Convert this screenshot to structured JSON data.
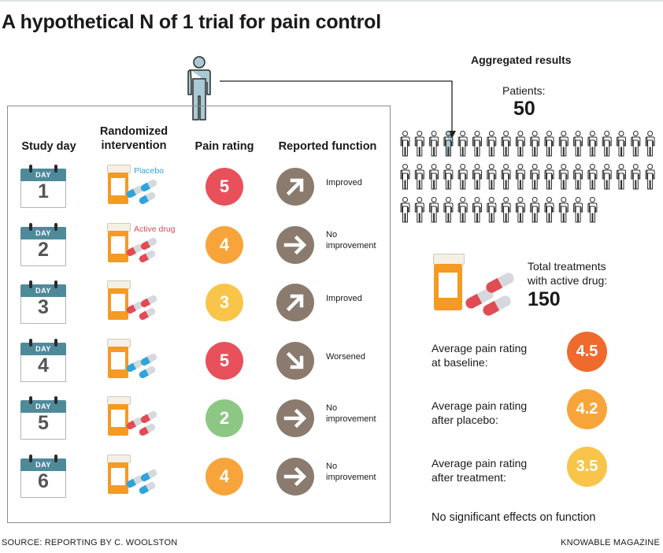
{
  "title": "A hypothetical N of 1 trial for pain control",
  "table": {
    "headers": {
      "study_day": "Study day",
      "intervention": "Randomized intervention",
      "pain_rating": "Pain rating",
      "function": "Reported function"
    },
    "day_label": "DAY",
    "rows": [
      {
        "day": "1",
        "intervention": "Placebo",
        "intervention_label": "Placebo",
        "rating": "5",
        "rating_color": "#e8505b",
        "function": "Improved",
        "arrow": "up-right-arrow-icon"
      },
      {
        "day": "2",
        "intervention": "Active drug",
        "intervention_label": "Active drug",
        "rating": "4",
        "rating_color": "#f7a53b",
        "function": "No improvement",
        "arrow": "right-arrow-icon"
      },
      {
        "day": "3",
        "intervention": "Active drug",
        "intervention_label": "",
        "rating": "3",
        "rating_color": "#f8c54a",
        "function": "Improved",
        "arrow": "up-right-arrow-icon"
      },
      {
        "day": "4",
        "intervention": "Placebo",
        "intervention_label": "",
        "rating": "5",
        "rating_color": "#e8505b",
        "function": "Worsened",
        "arrow": "down-right-arrow-icon"
      },
      {
        "day": "5",
        "intervention": "Active drug",
        "intervention_label": "",
        "rating": "2",
        "rating_color": "#8cc784",
        "function": "No improvement",
        "arrow": "right-arrow-icon"
      },
      {
        "day": "6",
        "intervention": "Placebo",
        "intervention_label": "",
        "rating": "4",
        "rating_color": "#f7a53b",
        "function": "No improvement",
        "arrow": "right-arrow-icon"
      }
    ]
  },
  "aggregated": {
    "title": "Aggregated results",
    "patients_label": "Patients:",
    "patients_value": "50",
    "total_label_1": "Total treatments",
    "total_label_2": "with active drug:",
    "total_value": "150",
    "ratings": [
      {
        "label_1": "Average pain rating",
        "label_2": "at baseline:",
        "value": "4.5",
        "color": "#ef6a2d"
      },
      {
        "label_1": "Average pain rating",
        "label_2": "after placebo:",
        "value": "4.2",
        "color": "#f7a53b"
      },
      {
        "label_1": "Average pain rating",
        "label_2": "after treatment:",
        "value": "3.5",
        "color": "#f8c54a"
      }
    ],
    "function_note": "No significant effects on function"
  },
  "colors": {
    "placebo": "#2fa3dc",
    "active_drug": "#e14b54",
    "calendar": "#4f8a9b",
    "person": "#a9c9d4",
    "function_circle": "#8a7b6e"
  },
  "source": "SOURCE: REPORTING BY C. WOOLSTON",
  "publisher": "KNOWABLE MAGAZINE"
}
